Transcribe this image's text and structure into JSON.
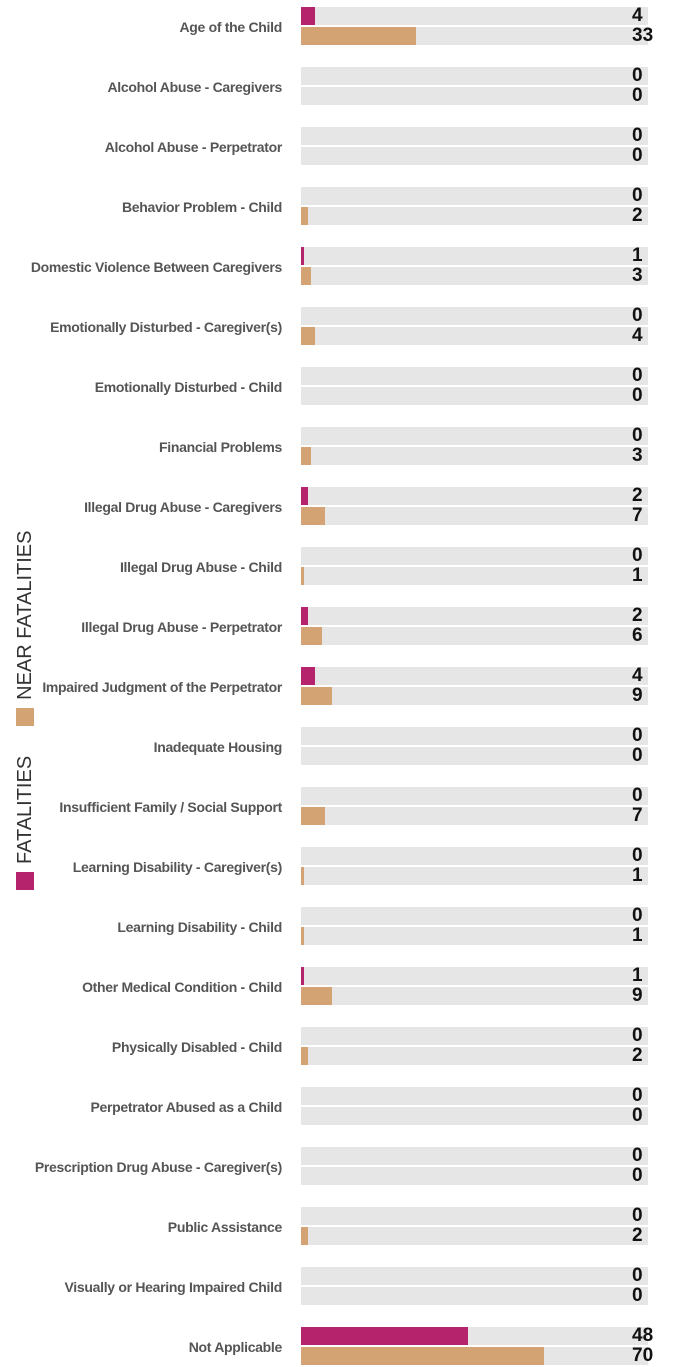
{
  "chart_data": {
    "type": "bar",
    "orientation": "horizontal",
    "categories": [
      "Age of the Child",
      "Alcohol Abuse - Caregivers",
      "Alcohol Abuse - Perpetrator",
      "Behavior Problem - Child",
      "Domestic Violence Between Caregivers",
      "Emotionally Disturbed - Caregiver(s)",
      "Emotionally Disturbed - Child",
      "Financial Problems",
      "Illegal Drug Abuse - Caregivers",
      "Illegal Drug Abuse - Child",
      "Illegal Drug Abuse - Perpetrator",
      "Impaired Judgment of the Perpetrator",
      "Inadequate Housing",
      "Insufficient Family / Social Support",
      "Learning Disability - Caregiver(s)",
      "Learning Disability - Child",
      "Other Medical Condition - Child",
      "Physically Disabled - Child",
      "Perpetrator Abused as a Child",
      "Prescription Drug Abuse - Caregiver(s)",
      "Public Assistance",
      "Visually or Hearing Impaired Child",
      "Not Applicable"
    ],
    "series": [
      {
        "name": "FATALITIES",
        "color": "#b5236d",
        "values": [
          4,
          0,
          0,
          0,
          1,
          0,
          0,
          0,
          2,
          0,
          2,
          4,
          0,
          0,
          0,
          0,
          1,
          0,
          0,
          0,
          0,
          0,
          48
        ]
      },
      {
        "name": "NEAR FATALITIES",
        "color": "#d4a373",
        "values": [
          33,
          0,
          0,
          2,
          3,
          4,
          0,
          3,
          7,
          1,
          6,
          9,
          0,
          7,
          1,
          1,
          9,
          2,
          0,
          0,
          2,
          0,
          70
        ]
      }
    ],
    "xlim": [
      0,
      100
    ],
    "track_color": "#e6e6e6"
  }
}
